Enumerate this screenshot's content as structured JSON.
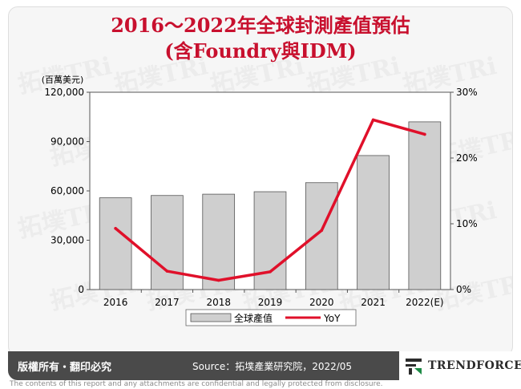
{
  "header": {
    "title_line1": "2016～2022年全球封測產值預估",
    "title_line2": "(含Foundry與IDM)"
  },
  "chart_data": {
    "type": "bar",
    "categories": [
      "2016",
      "2017",
      "2018",
      "2019",
      "2020",
      "2021",
      "2022(E)"
    ],
    "series": [
      {
        "name": "全球產值",
        "type": "bar",
        "axis": "left",
        "values": [
          55800,
          57200,
          58000,
          59500,
          65000,
          81500,
          102000
        ]
      },
      {
        "name": "YoY",
        "type": "line",
        "axis": "right",
        "values": [
          9.3,
          2.8,
          1.4,
          2.7,
          9.0,
          25.8,
          23.6
        ]
      }
    ],
    "y_left": {
      "label": "(百萬美元)",
      "min": 0,
      "max": 120000,
      "ticks": [
        0,
        30000,
        60000,
        90000,
        120000
      ],
      "tick_labels": [
        "0",
        "30,000",
        "60,000",
        "90,000",
        "120,000"
      ]
    },
    "y_right": {
      "min": 0,
      "max": 30,
      "ticks": [
        0,
        10,
        20,
        30
      ],
      "tick_labels": [
        "0%",
        "10%",
        "20%",
        "30%"
      ]
    },
    "legend_position": "bottom",
    "grid": false,
    "colors": {
      "bar_fill": "#cfcfcf",
      "bar_stroke": "#555555",
      "line": "#e0102a"
    }
  },
  "footer": {
    "copyright": "版權所有・翻印必究",
    "source": "Source：拓墣產業研究院，2022/05",
    "brand": "TRENDFORCE",
    "disclaimer": "The contents of this report and any attachments are confidential and legally protected from disclosure."
  },
  "watermark": {
    "text": "拓墣TRi"
  }
}
